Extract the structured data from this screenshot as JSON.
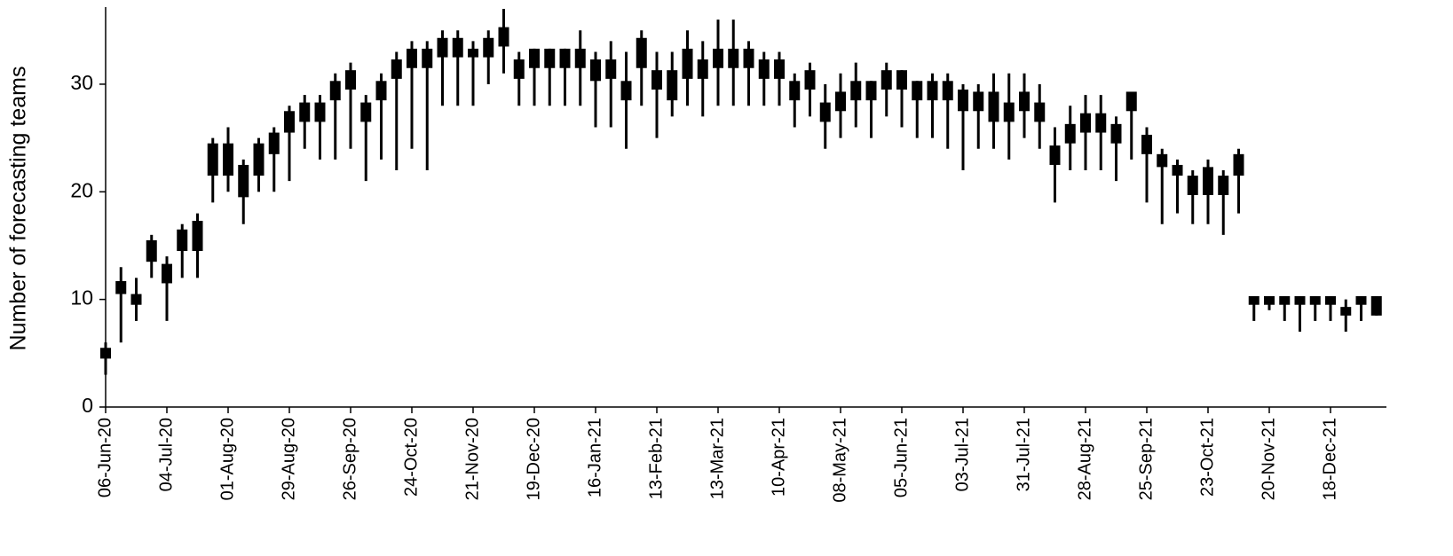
{
  "chart_data": {
    "type": "candlestick",
    "y_label": "Number of forecasting teams",
    "color": "#000000",
    "ylim": [
      0,
      37
    ],
    "yticks": [
      0,
      10,
      20,
      30
    ],
    "categories": [
      "06-Jun-20",
      null,
      null,
      null,
      "04-Jul-20",
      null,
      null,
      null,
      "01-Aug-20",
      null,
      null,
      null,
      "29-Aug-20",
      null,
      null,
      null,
      "26-Sep-20",
      null,
      null,
      null,
      "24-Oct-20",
      null,
      null,
      null,
      "21-Nov-20",
      null,
      null,
      null,
      "19-Dec-20",
      null,
      null,
      null,
      "16-Jan-21",
      null,
      null,
      null,
      "13-Feb-21",
      null,
      null,
      null,
      "13-Mar-21",
      null,
      null,
      null,
      "10-Apr-21",
      null,
      null,
      null,
      "08-May-21",
      null,
      null,
      null,
      "05-Jun-21",
      null,
      null,
      null,
      "03-Jul-21",
      null,
      null,
      null,
      "31-Jul-21",
      null,
      null,
      null,
      "28-Aug-21",
      null,
      null,
      null,
      "25-Sep-21",
      null,
      null,
      null,
      "23-Oct-21",
      null,
      null,
      null,
      "20-Nov-21",
      null,
      null,
      null,
      "18-Dec-21",
      null,
      null,
      null
    ],
    "low": [
      3,
      6,
      8,
      12,
      8,
      12,
      12,
      19,
      20,
      17,
      20,
      20,
      21,
      24,
      23,
      23,
      24,
      21,
      23,
      22,
      24,
      22,
      28,
      28,
      28,
      30,
      31,
      28,
      28,
      28,
      28,
      28,
      26,
      26,
      24,
      28,
      25,
      27,
      28,
      27,
      28,
      28,
      28,
      28,
      28,
      26,
      27,
      24,
      25,
      26,
      25,
      27,
      26,
      25,
      25,
      24,
      22,
      24,
      24,
      23,
      25,
      24,
      19,
      22,
      22,
      22,
      21,
      23,
      19,
      17,
      18,
      17,
      17,
      16,
      18,
      8,
      9,
      8,
      7,
      8,
      8,
      7,
      8,
      8.5
    ],
    "box_low": [
      4.5,
      10.5,
      9.5,
      13.5,
      11.5,
      14.5,
      14.5,
      21.5,
      21.5,
      19.5,
      21.5,
      23.5,
      25.5,
      26.5,
      26.5,
      28.5,
      29.5,
      26.5,
      28.5,
      30.5,
      31.5,
      31.5,
      32.5,
      32.5,
      32.5,
      32.5,
      33.5,
      30.5,
      31.5,
      31.5,
      31.5,
      31.5,
      30.3,
      30.5,
      28.5,
      31.5,
      29.5,
      28.5,
      30.5,
      30.5,
      31.5,
      31.5,
      31.5,
      30.5,
      30.5,
      28.5,
      29.5,
      26.5,
      27.5,
      28.5,
      28.5,
      29.5,
      29.5,
      28.5,
      28.5,
      28.5,
      27.5,
      27.5,
      26.5,
      26.5,
      27.5,
      26.5,
      22.5,
      24.5,
      25.5,
      25.5,
      24.5,
      27.5,
      23.5,
      22.3,
      21.5,
      19.7,
      19.7,
      19.7,
      21.5,
      9.5,
      9.5,
      9.5,
      9.5,
      9.5,
      9.5,
      8.5,
      9.5,
      8.5
    ],
    "box_high": [
      5.5,
      11.7,
      10.5,
      15.5,
      13.3,
      16.5,
      17.3,
      24.5,
      24.5,
      22.5,
      24.5,
      25.5,
      27.5,
      28.3,
      28.3,
      30.3,
      31.3,
      28.3,
      30.3,
      32.3,
      33.3,
      33.3,
      34.3,
      34.3,
      33.3,
      34.3,
      35.3,
      32.3,
      33.3,
      33.3,
      33.3,
      33.3,
      32.3,
      32.3,
      30.3,
      34.3,
      31.3,
      31.3,
      33.3,
      32.3,
      33.3,
      33.3,
      33.3,
      32.3,
      32.3,
      30.3,
      31.3,
      28.3,
      29.3,
      30.3,
      30.3,
      31.3,
      31.3,
      30.3,
      30.3,
      30.3,
      29.5,
      29.3,
      29.3,
      28.3,
      29.3,
      28.3,
      24.3,
      26.3,
      27.3,
      27.3,
      26.3,
      29.3,
      25.3,
      23.5,
      22.5,
      21.5,
      22.3,
      21.5,
      23.5,
      10.3,
      10.3,
      10.3,
      10.3,
      10.3,
      10.3,
      9.3,
      10.3,
      10.3
    ],
    "high": [
      6,
      13,
      12,
      16,
      14,
      17,
      18,
      25,
      26,
      23,
      25,
      26,
      28,
      29,
      29,
      31,
      32,
      29,
      31,
      33,
      34,
      34,
      35,
      35,
      34,
      35,
      37,
      33,
      33.3,
      33.3,
      33.3,
      35,
      33,
      34,
      33,
      35,
      33,
      33,
      35,
      34,
      36,
      36,
      34,
      33,
      33,
      31,
      32,
      30,
      31,
      32,
      30.3,
      32,
      31.3,
      30.3,
      31,
      31,
      30,
      30,
      31,
      31,
      31,
      30,
      26,
      28,
      29,
      29,
      27,
      29.3,
      26,
      24,
      23,
      22,
      23,
      22,
      24,
      10.3,
      10.3,
      10.3,
      10.3,
      10.3,
      10.3,
      10,
      10.3,
      10.3
    ]
  }
}
